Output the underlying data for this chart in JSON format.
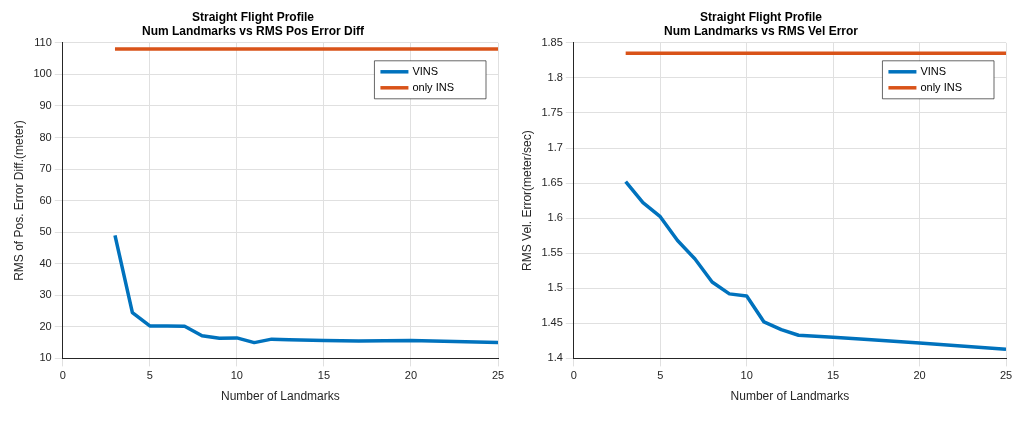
{
  "chart_data": [
    {
      "type": "line",
      "title": "Straight Flight Profile\nNum Landmarks vs RMS Pos Error Diff",
      "xlabel": "Number of Landmarks",
      "ylabel": "RMS of Pos. Error Diff.(meter)",
      "xlim": [
        0,
        25
      ],
      "xticks": [
        0,
        5,
        10,
        15,
        20,
        25
      ],
      "ylim": [
        10,
        110
      ],
      "yticks": [
        10,
        20,
        30,
        40,
        50,
        60,
        70,
        80,
        90,
        100,
        110
      ],
      "grid": true,
      "legend": "top right",
      "series": [
        {
          "name": "VINS",
          "color": "#0072bd",
          "x": [
            3,
            4,
            5,
            6,
            7,
            8,
            9,
            10,
            11,
            12,
            13,
            15,
            17,
            20,
            25
          ],
          "values": [
            49,
            24.5,
            20.3,
            20.3,
            20.2,
            17.2,
            16.4,
            16.5,
            15,
            16.1,
            15.9,
            15.7,
            15.5,
            15.7,
            15
          ]
        },
        {
          "name": "only INS",
          "color": "#d95319",
          "x": [
            3,
            25
          ],
          "values": [
            108,
            108
          ]
        }
      ]
    },
    {
      "type": "line",
      "title": "Straight Flight Profile\nNum Landmarks vs RMS Vel Error",
      "xlabel": "Number of Landmarks",
      "ylabel": "RMS Vel. Error(meter/sec)",
      "xlim": [
        0,
        25
      ],
      "xticks": [
        0,
        5,
        10,
        15,
        20,
        25
      ],
      "ylim": [
        1.4,
        1.85
      ],
      "yticks": [
        1.4,
        1.45,
        1.5,
        1.55,
        1.6,
        1.65,
        1.7,
        1.75,
        1.8,
        1.85
      ],
      "grid": true,
      "legend": "top right",
      "series": [
        {
          "name": "VINS",
          "color": "#0072bd",
          "x": [
            3,
            4,
            5,
            6,
            7,
            8,
            9,
            10,
            11,
            12,
            13,
            15,
            17,
            20,
            25
          ],
          "values": [
            1.652,
            1.622,
            1.602,
            1.568,
            1.542,
            1.509,
            1.492,
            1.489,
            1.452,
            1.441,
            1.433,
            1.43,
            1.427,
            1.422,
            1.413
          ]
        },
        {
          "name": "only INS",
          "color": "#d95319",
          "x": [
            3,
            25
          ],
          "values": [
            1.835,
            1.835
          ]
        }
      ]
    }
  ]
}
